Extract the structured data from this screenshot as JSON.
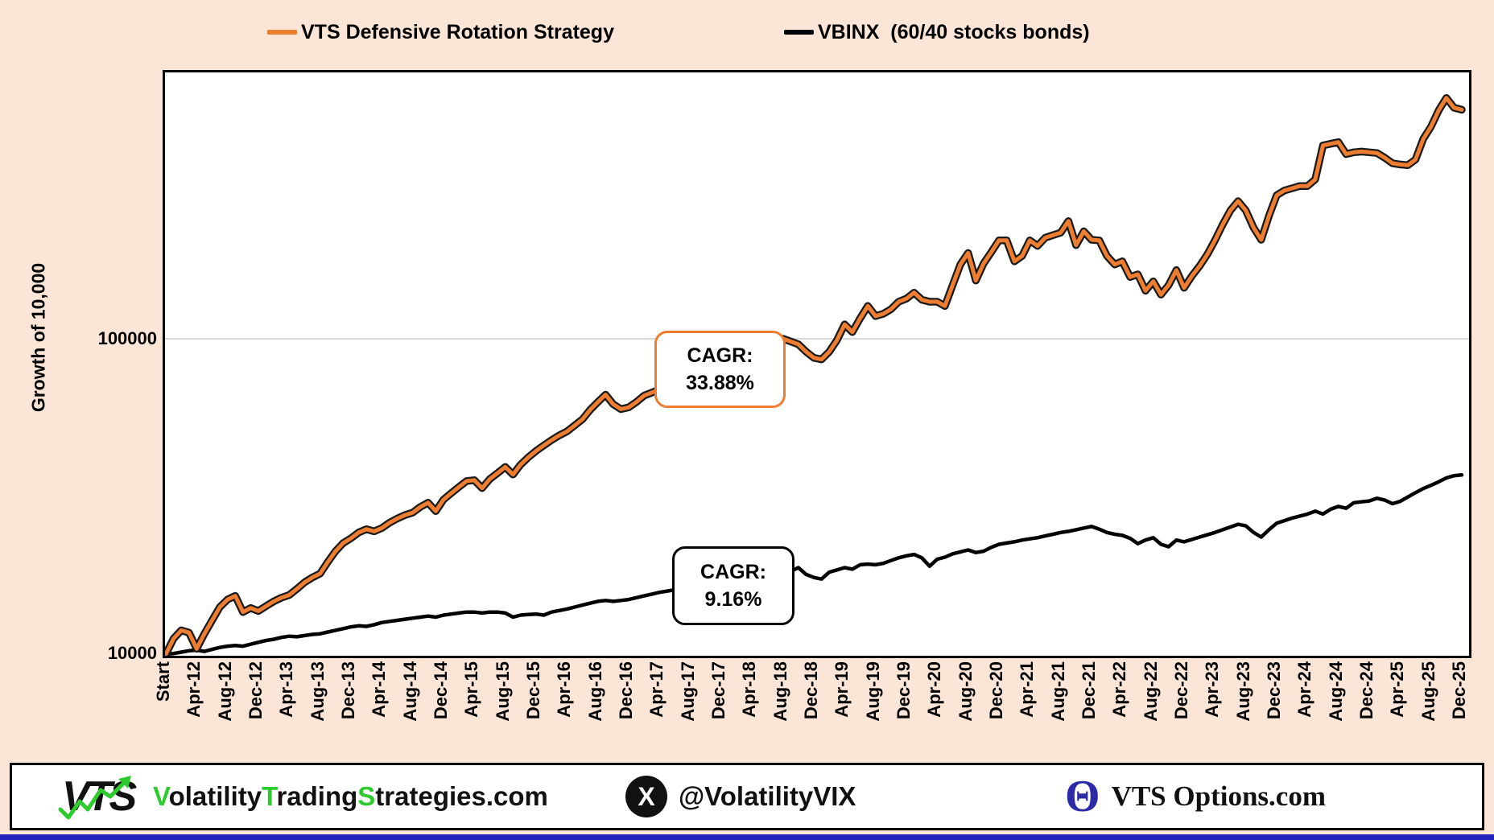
{
  "page": {
    "background": "#FBE5D6",
    "bottom_bar_color": "#2222BE"
  },
  "legend": {
    "series": [
      {
        "label": "VTS Defensive Rotation Strategy",
        "color": "#ED7D31"
      },
      {
        "label": "VBINX  (60/40 stocks bonds)",
        "color": "#000000"
      }
    ]
  },
  "chart_data": {
    "type": "line",
    "title": "",
    "ylabel": "Growth of 10,000",
    "xlabel": "",
    "y_scale": "log",
    "ylim": [
      10000,
      711000
    ],
    "grid": "horizontal-at-100000-only",
    "legend_position": "top",
    "y_ticks": [
      {
        "label": "10000",
        "value": 10000
      },
      {
        "label": "100000",
        "value": 100000
      }
    ],
    "gridline_values": [
      100000
    ],
    "x_tick_labels": [
      "Start",
      "Apr-12",
      "Aug-12",
      "Dec-12",
      "Apr-13",
      "Aug-13",
      "Dec-13",
      "Apr-14",
      "Aug-14",
      "Dec-14",
      "Apr-15",
      "Aug-15",
      "Dec-15",
      "Apr-16",
      "Aug-16",
      "Dec-16",
      "Apr-17",
      "Aug-17",
      "Dec-17",
      "Apr-18",
      "Aug-18",
      "Dec-18",
      "Apr-19",
      "Aug-19",
      "Dec-19",
      "Apr-20",
      "Aug-20",
      "Dec-20",
      "Apr-21",
      "Aug-21",
      "Dec-21",
      "Apr-22",
      "Aug-22",
      "Dec-22",
      "Apr-23",
      "Aug-23",
      "Dec-23",
      "Apr-24",
      "Aug-24",
      "Dec-24",
      "Apr-25",
      "Aug-25",
      "Dec-25"
    ],
    "points_per_tick": 4,
    "x_unit": "month",
    "annotations": [
      {
        "line1": "CAGR:",
        "line2": "33.88%",
        "series": "VTS Defensive Rotation Strategy",
        "border_color": "#ED7D31"
      },
      {
        "line1": "CAGR:",
        "line2": "9.16%",
        "series": "VBINX (60/40 stocks bonds)",
        "border_color": "#000000"
      }
    ],
    "series": [
      {
        "name": "VTS Defensive Rotation Strategy",
        "color": "#ED7D31",
        "outline_color": "#1a1a1a",
        "values": [
          10000,
          11200,
          11900,
          11700,
          10400,
          11600,
          12800,
          14100,
          14900,
          15300,
          13600,
          14000,
          13700,
          14200,
          14700,
          15100,
          15400,
          16100,
          16900,
          17500,
          18000,
          19600,
          21200,
          22500,
          23300,
          24300,
          24900,
          24500,
          25100,
          26100,
          26900,
          27600,
          28100,
          29300,
          30200,
          28400,
          30900,
          32400,
          33900,
          35400,
          35600,
          33600,
          35900,
          37500,
          39200,
          37100,
          39900,
          42100,
          44100,
          45900,
          47700,
          49400,
          50800,
          53100,
          55500,
          59500,
          63000,
          66500,
          62000,
          59800,
          60600,
          63000,
          66000,
          67500,
          69000,
          71500,
          74500,
          77500,
          80500,
          84000,
          87500,
          91000,
          95000,
          99000,
          102000,
          98500,
          100500,
          96000,
          90000,
          95000,
          100000,
          98000,
          96000,
          91000,
          87000,
          86000,
          91000,
          99000,
          111000,
          105000,
          116000,
          127000,
          118000,
          120000,
          124000,
          131000,
          134000,
          140000,
          133000,
          131000,
          131000,
          127000,
          148000,
          172000,
          187000,
          153000,
          173000,
          188000,
          205000,
          205000,
          176000,
          183000,
          205000,
          197000,
          209000,
          213000,
          217000,
          236000,
          198000,
          219000,
          206000,
          205000,
          183000,
          172000,
          176000,
          157000,
          160000,
          142000,
          152000,
          138000,
          148000,
          165000,
          145000,
          158000,
          170000,
          185000,
          205000,
          230000,
          255000,
          273000,
          255000,
          225000,
          206000,
          245000,
          285000,
          295000,
          300000,
          305000,
          305000,
          320000,
          410000,
          415000,
          420000,
          385000,
          390000,
          392000,
          390000,
          388000,
          375000,
          360000,
          357000,
          355000,
          370000,
          430000,
          470000,
          530000,
          580000,
          540000,
          532000
        ]
      },
      {
        "name": "VBINX (60/40 stocks bonds)",
        "color": "#000000",
        "values": [
          10000,
          10050,
          10150,
          10250,
          10300,
          10200,
          10350,
          10500,
          10600,
          10650,
          10600,
          10750,
          10900,
          11050,
          11150,
          11300,
          11400,
          11350,
          11450,
          11550,
          11600,
          11750,
          11900,
          12050,
          12200,
          12300,
          12250,
          12400,
          12600,
          12700,
          12800,
          12900,
          13000,
          13100,
          13200,
          13100,
          13300,
          13400,
          13500,
          13600,
          13600,
          13500,
          13600,
          13600,
          13500,
          13100,
          13300,
          13350,
          13400,
          13300,
          13600,
          13750,
          13900,
          14100,
          14300,
          14500,
          14700,
          14800,
          14700,
          14800,
          14900,
          15100,
          15300,
          15500,
          15700,
          15850,
          16000,
          16150,
          16300,
          16500,
          16750,
          17000,
          17200,
          17500,
          17700,
          17100,
          17300,
          17400,
          17500,
          17800,
          18100,
          18300,
          18800,
          17900,
          17500,
          17300,
          18200,
          18500,
          18800,
          18600,
          19200,
          19300,
          19200,
          19400,
          19800,
          20200,
          20500,
          20700,
          20200,
          19000,
          20000,
          20300,
          20800,
          21100,
          21400,
          21000,
          21200,
          21800,
          22300,
          22500,
          22700,
          23000,
          23200,
          23400,
          23700,
          24000,
          24300,
          24500,
          24800,
          25100,
          25400,
          24900,
          24300,
          24000,
          23800,
          23300,
          22400,
          23000,
          23400,
          22300,
          21900,
          23000,
          22700,
          23100,
          23500,
          23900,
          24300,
          24800,
          25300,
          25800,
          25500,
          24300,
          23500,
          24800,
          26000,
          26500,
          27000,
          27400,
          27800,
          28400,
          27800,
          28800,
          29400,
          29000,
          30200,
          30400,
          30600,
          31200,
          30800,
          30000,
          30500,
          31500,
          32500,
          33500,
          34300,
          35200,
          36200,
          36800,
          37000
        ]
      }
    ]
  },
  "footer": {
    "logo_text": "VTS",
    "logo_arrow_color": "#2ECB2E",
    "site_segments": [
      {
        "text": "V",
        "color": "#2ECB2E"
      },
      {
        "text": "olatility",
        "color": "#111111"
      },
      {
        "text": "T",
        "color": "#2ECB2E"
      },
      {
        "text": "rading",
        "color": "#111111"
      },
      {
        "text": "S",
        "color": "#2ECB2E"
      },
      {
        "text": "trategies.com",
        "color": "#111111"
      }
    ],
    "x_icon_label": "X",
    "twitter_handle": "@VolatilityVIX",
    "theta_symbol": "Θ",
    "theta_color": "#2B2BA8",
    "options_site": "VTS Options.com"
  }
}
